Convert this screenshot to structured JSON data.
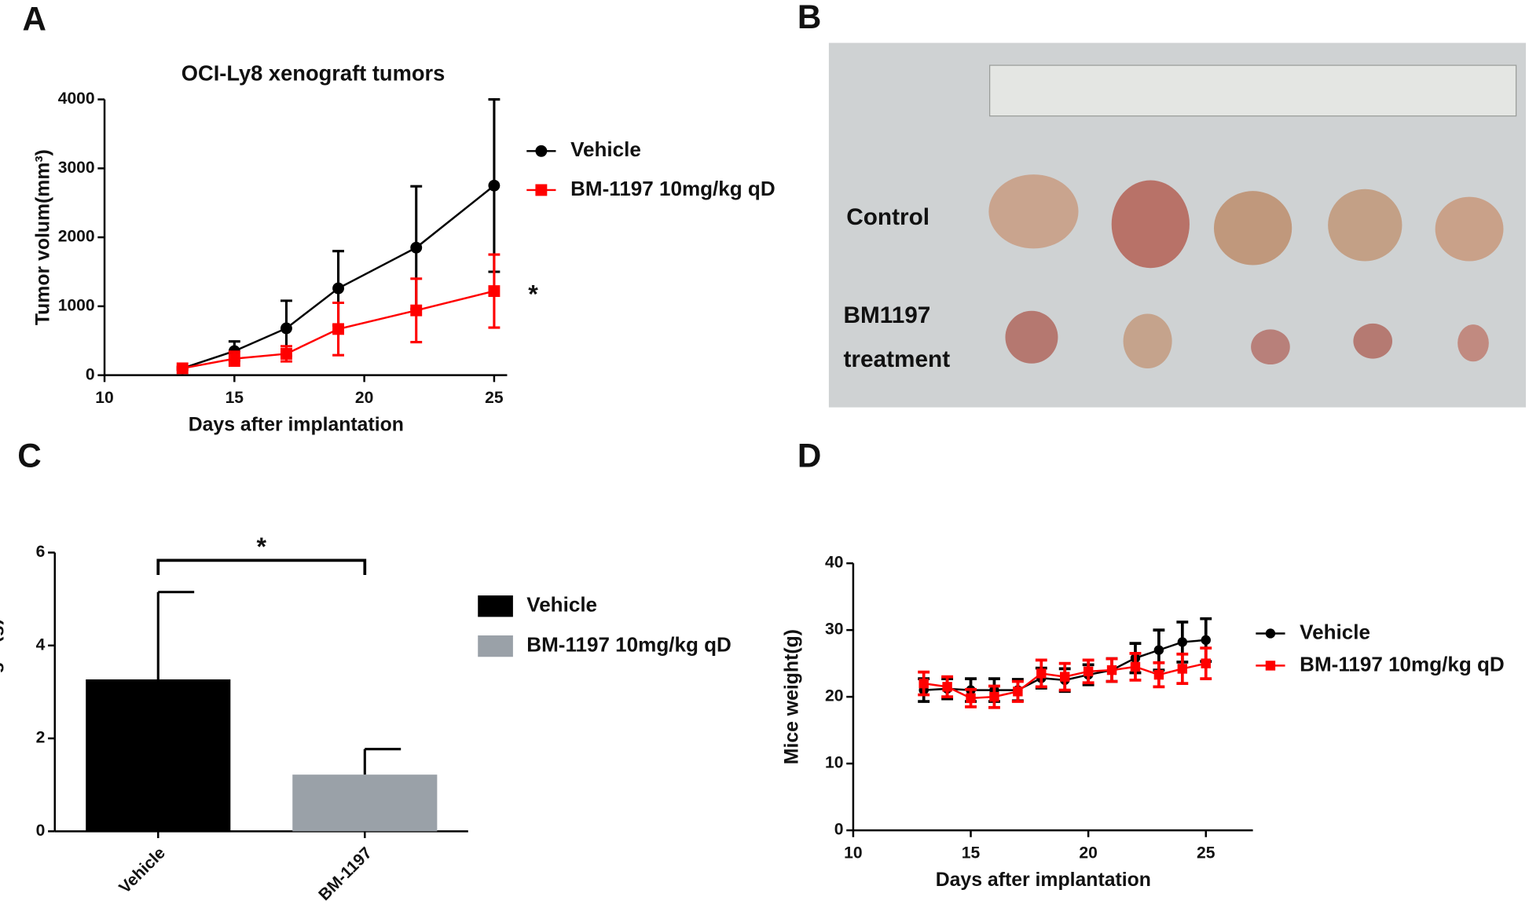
{
  "chart_data": [
    {
      "type": "line",
      "panel": "A",
      "title": "OCI-Ly8 xenograft tumors",
      "x_label": "Days after implantation",
      "y_label": "Tumor volum(mm³)",
      "x": [
        13,
        15,
        17,
        19,
        22,
        25
      ],
      "series": [
        {
          "name": "Vehicle",
          "color": "#000000",
          "marker": "circle",
          "values": [
            100,
            350,
            680,
            1260,
            1850,
            2750
          ],
          "errors": [
            20,
            140,
            400,
            540,
            890,
            1250
          ]
        },
        {
          "name": "BM-1197 10mg/kg qD",
          "color": "#ff0000",
          "marker": "square",
          "values": [
            100,
            240,
            310,
            670,
            940,
            1220
          ],
          "errors": [
            20,
            100,
            110,
            380,
            460,
            530
          ]
        }
      ],
      "xlim": [
        10,
        25.5
      ],
      "xticks": [
        10,
        15,
        20,
        25
      ],
      "ylim": [
        0,
        4000
      ],
      "yticks": [
        0,
        1000,
        2000,
        3000,
        4000
      ],
      "annotations": [
        "*"
      ]
    },
    {
      "type": "photo",
      "panel": "B",
      "labels": [
        "Control",
        "BM1197",
        "treatment"
      ]
    },
    {
      "type": "bar",
      "panel": "C",
      "y_label": "tumor weight(g)",
      "categories": [
        "Vehicle",
        "BM-1197"
      ],
      "values": [
        3.27,
        1.22
      ],
      "errors": [
        1.88,
        0.55
      ],
      "colors": [
        "#000000",
        "#9aa1a8"
      ],
      "legend": [
        "Vehicle",
        "BM-1197 10mg/kg qD"
      ],
      "ylim": [
        0,
        6
      ],
      "yticks": [
        0,
        2,
        4,
        6
      ],
      "significance": "*"
    },
    {
      "type": "line",
      "panel": "D",
      "x_label": "Days after implantation",
      "y_label": "Mice weight(g)",
      "x": [
        13,
        14,
        15,
        16,
        17,
        18,
        19,
        20,
        21,
        22,
        23,
        24,
        25
      ],
      "series": [
        {
          "name": "Vehicle",
          "color": "#000000",
          "marker": "circle",
          "values": [
            21,
            21.2,
            21,
            21,
            21,
            22.8,
            22.5,
            23.3,
            24,
            25.8,
            27,
            28.2,
            28.5
          ],
          "errors": [
            1.7,
            1.5,
            1.7,
            1.7,
            1.6,
            1.5,
            1.7,
            1.5,
            1.7,
            2.2,
            3,
            3,
            3.2
          ]
        },
        {
          "name": "BM-1197 10mg/kg qD",
          "color": "#ff0000",
          "marker": "square",
          "values": [
            22,
            21.5,
            19.8,
            20,
            20.8,
            23.5,
            23,
            23.8,
            24,
            24.5,
            23.3,
            24.2,
            25
          ],
          "errors": [
            1.7,
            1.5,
            1.3,
            1.6,
            1.5,
            2,
            2,
            1.7,
            1.7,
            2,
            1.8,
            2.2,
            2.3
          ]
        }
      ],
      "xlim": [
        10,
        27
      ],
      "xticks": [
        10,
        15,
        20,
        25
      ],
      "ylim": [
        0,
        40
      ],
      "yticks": [
        0,
        10,
        20,
        30,
        40
      ]
    }
  ]
}
